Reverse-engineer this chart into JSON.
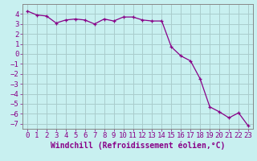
{
  "xlabel": "Windchill (Refroidissement éolien,°C)",
  "x": [
    0,
    1,
    2,
    3,
    4,
    5,
    6,
    7,
    8,
    9,
    10,
    11,
    12,
    13,
    14,
    15,
    16,
    17,
    18,
    19,
    20,
    21,
    22,
    23
  ],
  "y": [
    4.3,
    3.9,
    3.8,
    3.1,
    3.4,
    3.5,
    3.4,
    3.0,
    3.5,
    3.3,
    3.7,
    3.7,
    3.4,
    3.3,
    3.3,
    0.7,
    -0.2,
    -0.7,
    -2.5,
    -5.3,
    -5.8,
    -6.4,
    -5.9,
    -7.2
  ],
  "line_color": "#880088",
  "marker_color": "#880088",
  "bg_color": "#c8f0f0",
  "grid_color": "#aacccc",
  "axis_color": "#880088",
  "spine_color": "#888888",
  "ylim": [
    -7.5,
    5.0
  ],
  "xlim": [
    -0.5,
    23.5
  ],
  "yticks": [
    4,
    3,
    2,
    1,
    0,
    -1,
    -2,
    -3,
    -4,
    -5,
    -6,
    -7
  ],
  "xticks": [
    0,
    1,
    2,
    3,
    4,
    5,
    6,
    7,
    8,
    9,
    10,
    11,
    12,
    13,
    14,
    15,
    16,
    17,
    18,
    19,
    20,
    21,
    22,
    23
  ],
  "tick_fontsize": 6.5,
  "xlabel_fontsize": 7.0
}
